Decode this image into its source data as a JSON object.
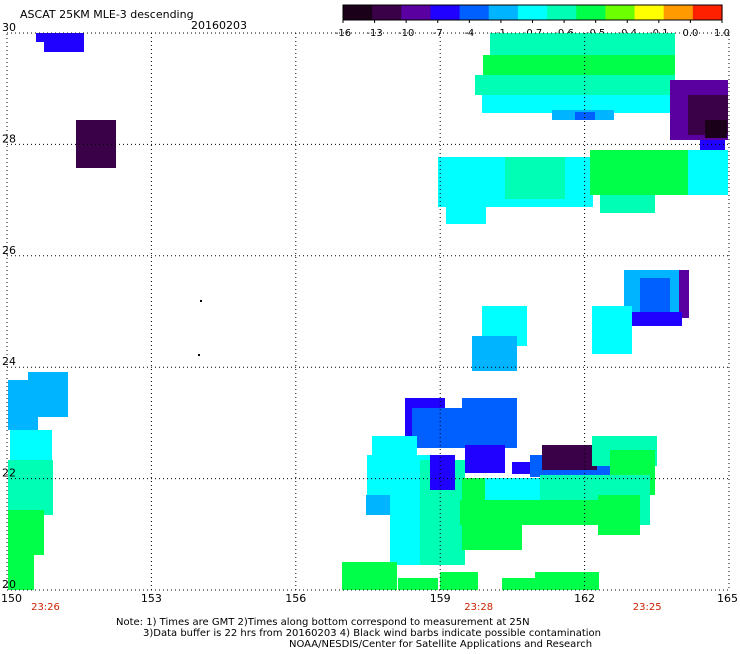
{
  "header": {
    "title": "ASCAT 25KM MLE-3 descending",
    "date": "20160203"
  },
  "colorbar": {
    "labels": [
      "-16",
      "-13",
      "-10",
      "-7",
      "-4",
      "-1",
      "-0.7",
      "-0.6",
      "-0.5",
      "-0.4",
      "-0.1",
      "0.0",
      "1.0"
    ],
    "colors": [
      "#1a0018",
      "#3a0048",
      "#5a00a0",
      "#2000ff",
      "#0060ff",
      "#00b4ff",
      "#00ffff",
      "#00ffb4",
      "#00ff48",
      "#6cff00",
      "#ffff00",
      "#ff9a00",
      "#ff2000"
    ]
  },
  "axes": {
    "lon_labels": [
      "150",
      "153",
      "156",
      "159",
      "162",
      "165"
    ],
    "lat_labels": [
      "30",
      "28",
      "26",
      "24",
      "22",
      "20"
    ],
    "lon_range": [
      150,
      165
    ],
    "lat_range": [
      20,
      30
    ]
  },
  "times": [
    {
      "text": "23:26",
      "lon": 150.8
    },
    {
      "text": "23:28",
      "lon": 159.8
    },
    {
      "text": "23:25",
      "lon": 163.3
    }
  ],
  "colors": {
    "time_label": "#cc2200",
    "grid": "#000000"
  },
  "notes": {
    "line1": "Note: 1) Times are GMT 2)Times along bottom correspond to measurement at 25N",
    "line2": "3)Data buffer is 22 hrs from 20160203 4) Black wind barbs indicate possible contamination",
    "line3": "NOAA/NESDIS/Center for Satellite Applications and Research"
  }
}
